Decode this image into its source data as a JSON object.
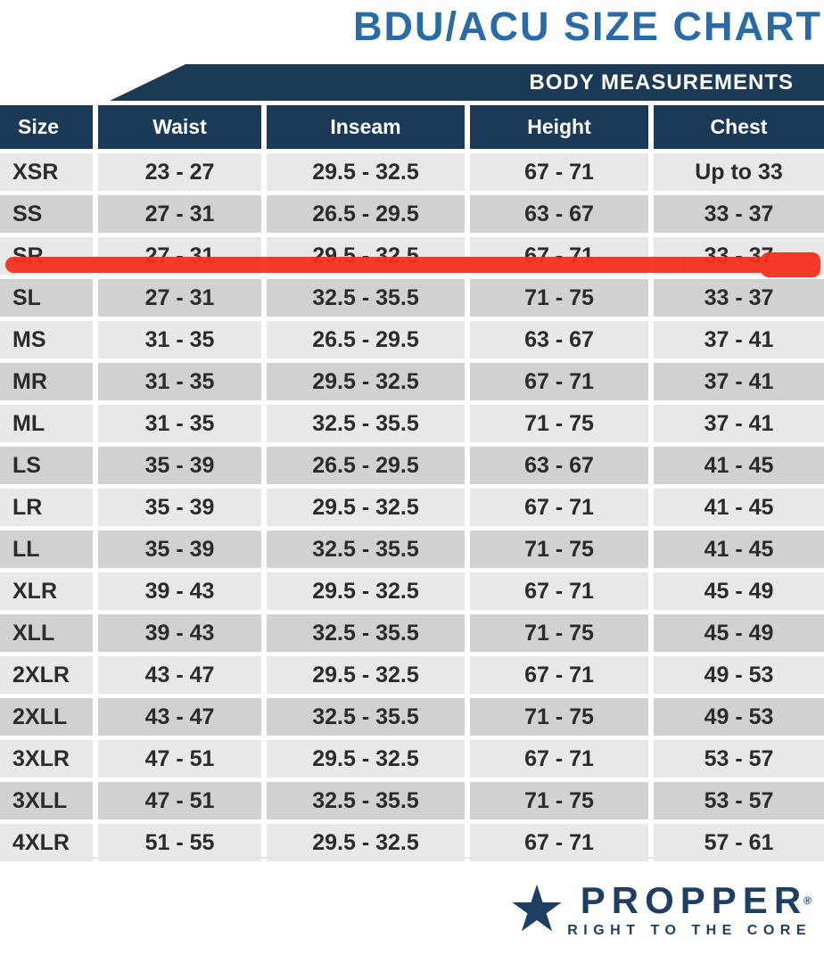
{
  "title": "BDU/ACU SIZE CHART",
  "banner": {
    "label": "BODY MEASUREMENTS"
  },
  "chart_data": {
    "type": "table",
    "title": "BDU/ACU SIZE CHART",
    "section_header": "BODY MEASUREMENTS",
    "columns": [
      "Size",
      "Waist",
      "Inseam",
      "Height",
      "Chest"
    ],
    "rows": [
      [
        "XSR",
        "23 - 27",
        "29.5 - 32.5",
        "67 - 71",
        "Up to 33"
      ],
      [
        "SS",
        "27 - 31",
        "26.5 - 29.5",
        "63 - 67",
        "33 - 37"
      ],
      [
        "SR",
        "27 - 31",
        "29.5 - 32.5",
        "67 - 71",
        "33 - 37"
      ],
      [
        "SL",
        "27 - 31",
        "32.5 - 35.5",
        "71 - 75",
        "33 - 37"
      ],
      [
        "MS",
        "31 - 35",
        "26.5 - 29.5",
        "63 - 67",
        "37 - 41"
      ],
      [
        "MR",
        "31 - 35",
        "29.5 - 32.5",
        "67 - 71",
        "37 - 41"
      ],
      [
        "ML",
        "31 - 35",
        "32.5 - 35.5",
        "71 - 75",
        "37 - 41"
      ],
      [
        "LS",
        "35 - 39",
        "26.5 - 29.5",
        "63 - 67",
        "41 - 45"
      ],
      [
        "LR",
        "35 - 39",
        "29.5 - 32.5",
        "67 - 71",
        "41 - 45"
      ],
      [
        "LL",
        "35 - 39",
        "32.5 - 35.5",
        "71 - 75",
        "41 - 45"
      ],
      [
        "XLR",
        "39 - 43",
        "29.5 - 32.5",
        "67 - 71",
        "45 - 49"
      ],
      [
        "XLL",
        "39 - 43",
        "32.5 - 35.5",
        "71 - 75",
        "45 - 49"
      ],
      [
        "2XLR",
        "43 - 47",
        "29.5 - 32.5",
        "67 - 71",
        "49 - 53"
      ],
      [
        "2XLL",
        "43 - 47",
        "32.5 - 35.5",
        "71 - 75",
        "49 - 53"
      ],
      [
        "3XLR",
        "47 - 51",
        "29.5 - 32.5",
        "67 - 71",
        "53 - 57"
      ],
      [
        "3XLL",
        "47 - 51",
        "32.5 - 35.5",
        "71 - 75",
        "53 - 57"
      ],
      [
        "4XLR",
        "51 - 55",
        "29.5 - 32.5",
        "67 - 71",
        "57 - 61"
      ]
    ],
    "highlighted_row": "SR",
    "highlight_style": "red marker line drawn across entire row"
  },
  "logo": {
    "brand": "PROPPER",
    "registered_mark": "®",
    "tagline": "RIGHT TO THE CORE",
    "star_icon": "★"
  },
  "colors": {
    "title_blue": "#2b6ba5",
    "navy_banner": "#1b3a55",
    "navy_header": "#1b3a57",
    "row_light": "#e8e8e8",
    "row_dark": "#d1d1d1",
    "marker_red": "#f5301f",
    "logo_navy": "#1e3f61"
  }
}
